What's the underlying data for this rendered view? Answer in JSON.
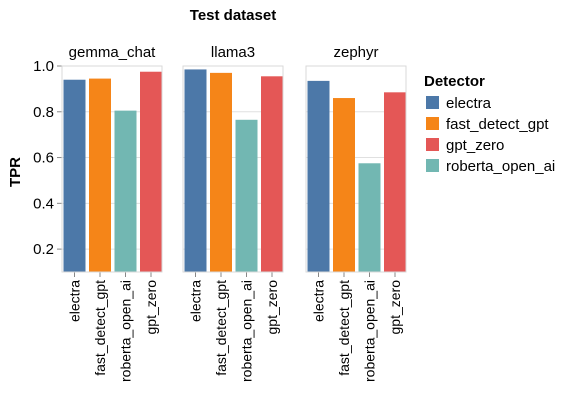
{
  "chart_data": {
    "type": "bar",
    "title": "Test dataset",
    "ylabel": "TPR",
    "ylim": [
      0.1,
      1.0
    ],
    "yticks": [
      0.2,
      0.4,
      0.6,
      0.8,
      1.0
    ],
    "yticklabels": [
      "0.2",
      "0.4",
      "0.6",
      "0.8",
      "1.0"
    ],
    "categories": [
      "electra",
      "fast_detect_gpt",
      "roberta_open_ai",
      "gpt_zero"
    ],
    "colors": {
      "electra": "#4c78a8",
      "fast_detect_gpt": "#f58518",
      "gpt_zero": "#e45756",
      "roberta_open_ai": "#72b7b2"
    },
    "legend": {
      "title": "Detector",
      "placement": "right",
      "entries": [
        "electra",
        "fast_detect_gpt",
        "gpt_zero",
        "roberta_open_ai"
      ]
    },
    "facets": [
      {
        "name": "gemma_chat",
        "values": [
          0.94,
          0.945,
          0.805,
          0.975
        ]
      },
      {
        "name": "llama3",
        "values": [
          0.985,
          0.97,
          0.765,
          0.955
        ]
      },
      {
        "name": "zephyr",
        "values": [
          0.935,
          0.86,
          0.575,
          0.885
        ]
      }
    ]
  }
}
